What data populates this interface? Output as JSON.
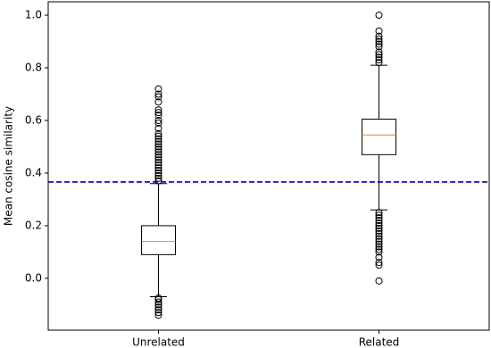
{
  "chart_data": {
    "type": "box",
    "y_label": "Mean cosine similarity",
    "categories": [
      "Unrelated",
      "Related"
    ],
    "xlim": [
      0.5,
      2.5
    ],
    "ylim": [
      -0.197,
      1.051
    ],
    "yticks": [
      {
        "value": 0,
        "label": "0.0"
      },
      {
        "value": 0.2,
        "label": "0.2"
      },
      {
        "value": 0.4,
        "label": "0.4"
      },
      {
        "value": 0.6,
        "label": "0.6"
      },
      {
        "value": 0.8,
        "label": "0.8"
      },
      {
        "value": 1,
        "label": "1.0"
      }
    ],
    "box_color": "#000000",
    "median_color": "#ff7f0e",
    "boxes": [
      {
        "whislo": -0.07,
        "q1": 0.09,
        "med": 0.14,
        "q3": 0.2,
        "whishi": 0.36,
        "fliers": [
          -0.075,
          -0.08,
          -0.09,
          -0.1,
          -0.11,
          -0.12,
          -0.13,
          -0.14,
          0.37,
          0.38,
          0.39,
          0.4,
          0.41,
          0.42,
          0.43,
          0.44,
          0.45,
          0.46,
          0.47,
          0.48,
          0.49,
          0.5,
          0.51,
          0.52,
          0.53,
          0.54,
          0.55,
          0.57,
          0.59,
          0.6,
          0.62,
          0.63,
          0.64,
          0.67,
          0.69,
          0.7,
          0.72
        ]
      },
      {
        "whislo": 0.26,
        "q1": 0.47,
        "med": 0.545,
        "q3": 0.605,
        "whishi": 0.81,
        "fliers": [
          -0.01,
          0.05,
          0.06,
          0.08,
          0.1,
          0.11,
          0.12,
          0.13,
          0.14,
          0.15,
          0.16,
          0.17,
          0.18,
          0.19,
          0.2,
          0.21,
          0.22,
          0.23,
          0.24,
          0.25,
          0.82,
          0.83,
          0.84,
          0.85,
          0.86,
          0.88,
          0.89,
          0.9,
          0.91,
          0.92,
          0.94,
          1.0
        ]
      }
    ],
    "hline": {
      "value": 0.366,
      "color": "#0000b3",
      "style": "dashed"
    }
  }
}
